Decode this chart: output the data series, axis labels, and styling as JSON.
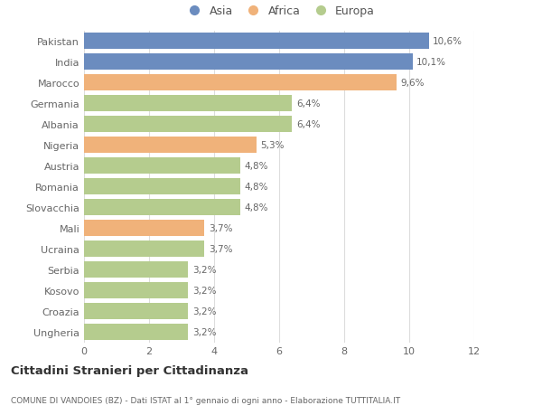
{
  "labels_display": [
    "Ungheria",
    "Croazia",
    "Kosovo",
    "Serbia",
    "Ucraina",
    "Mali",
    "Slovacchia",
    "Romania",
    "Austria",
    "Nigeria",
    "Albania",
    "Germania",
    "Marocco",
    "India",
    "Pakistan"
  ],
  "values": [
    3.2,
    3.2,
    3.2,
    3.2,
    3.7,
    3.7,
    4.8,
    4.8,
    4.8,
    5.3,
    6.4,
    6.4,
    9.6,
    10.1,
    10.6
  ],
  "value_labels": [
    "3,2%",
    "3,2%",
    "3,2%",
    "3,2%",
    "3,7%",
    "3,7%",
    "4,8%",
    "4,8%",
    "4,8%",
    "5,3%",
    "6,4%",
    "6,4%",
    "9,6%",
    "10,1%",
    "10,6%"
  ],
  "colors": [
    "#b5cc8e",
    "#b5cc8e",
    "#b5cc8e",
    "#b5cc8e",
    "#b5cc8e",
    "#f0b27a",
    "#b5cc8e",
    "#b5cc8e",
    "#b5cc8e",
    "#f0b27a",
    "#b5cc8e",
    "#b5cc8e",
    "#f0b27a",
    "#6b8cbf",
    "#6b8cbf"
  ],
  "legend_labels": [
    "Asia",
    "Africa",
    "Europa"
  ],
  "legend_colors": [
    "#6b8cbf",
    "#f0b27a",
    "#b5cc8e"
  ],
  "title": "Cittadini Stranieri per Cittadinanza",
  "subtitle": "COMUNE DI VANDOIES (BZ) - Dati ISTAT al 1° gennaio di ogni anno - Elaborazione TUTTITALIA.IT",
  "xlim": [
    0,
    12
  ],
  "xticks": [
    0,
    2,
    4,
    6,
    8,
    10,
    12
  ],
  "background_color": "#ffffff",
  "bar_height": 0.75
}
